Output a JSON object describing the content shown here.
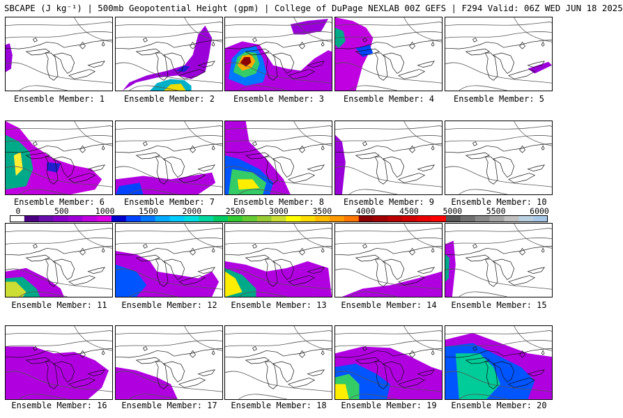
{
  "title": "SBCAPE (J kg⁻¹) | 500mb Geopotential Height (gpm) | College of DuPage NEXLAB 00Z GEFS | F294 Valid: 06Z WED JUN 18 2025",
  "legend": {
    "ticks": [
      "0",
      "500",
      "1000",
      "1500",
      "2000",
      "2500",
      "3000",
      "3500",
      "4000",
      "4500",
      "5000",
      "5500",
      "6000"
    ],
    "colors": [
      "#ffffff",
      "#4b0082",
      "#6a0dad",
      "#8b00c8",
      "#a000d8",
      "#c000e0",
      "#dd00e6",
      "#0000cd",
      "#0044ff",
      "#0077ff",
      "#00aaff",
      "#00ccff",
      "#00e0e0",
      "#00d8a0",
      "#00cc66",
      "#33cc33",
      "#66cc33",
      "#99cc33",
      "#ccdd33",
      "#ffff00",
      "#ffdd00",
      "#ffbb00",
      "#ff9900",
      "#ff7700",
      "#8b0000",
      "#a00000",
      "#bb0000",
      "#d00000",
      "#e80000",
      "#ff0000",
      "#555555",
      "#707070",
      "#8a8a8a",
      "#a5a5a5",
      "#c0c0c0",
      "#b8d0e0",
      "#a8c8e8"
    ]
  },
  "members": [
    {
      "label": "Ensemble Member: 1"
    },
    {
      "label": "Ensemble Member: 2"
    },
    {
      "label": "Ensemble Member: 3"
    },
    {
      "label": "Ensemble Member: 4"
    },
    {
      "label": "Ensemble Member: 5"
    },
    {
      "label": "Ensemble Member: 6"
    },
    {
      "label": "Ensemble Member: 7"
    },
    {
      "label": "Ensemble Member: 8"
    },
    {
      "label": "Ensemble Member: 9"
    },
    {
      "label": "Ensemble Member: 10"
    },
    {
      "label": "Ensemble Member: 11"
    },
    {
      "label": "Ensemble Member: 12"
    },
    {
      "label": "Ensemble Member: 13"
    },
    {
      "label": "Ensemble Member: 14"
    },
    {
      "label": "Ensemble Member: 15"
    },
    {
      "label": "Ensemble Member: 16"
    },
    {
      "label": "Ensemble Member: 17"
    },
    {
      "label": "Ensemble Member: 18"
    },
    {
      "label": "Ensemble Member: 19"
    },
    {
      "label": "Ensemble Member: 20"
    }
  ]
}
